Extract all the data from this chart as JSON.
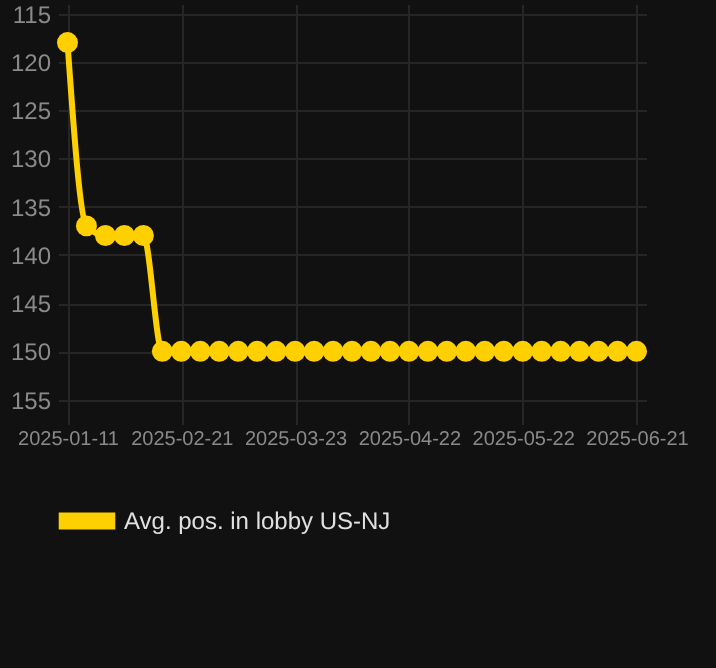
{
  "chart_data": {
    "type": "line",
    "categories": [
      "2025-01-11",
      null,
      null,
      null,
      null,
      null,
      "2025-02-21",
      null,
      null,
      null,
      null,
      null,
      "2025-03-23",
      null,
      null,
      null,
      null,
      null,
      "2025-04-22",
      null,
      null,
      null,
      null,
      null,
      "2025-05-22",
      null,
      null,
      null,
      null,
      null,
      "2025-06-21"
    ],
    "series": [
      {
        "name": "Avg. pos. in lobby US-NJ",
        "color": "#ffd000",
        "values": [
          118,
          137,
          138,
          138,
          138,
          150,
          150,
          150,
          150,
          150,
          150,
          150,
          150,
          150,
          150,
          150,
          150,
          150,
          150,
          150,
          150,
          150,
          150,
          150,
          150,
          150,
          150,
          150,
          150,
          150,
          150
        ]
      }
    ],
    "ylim": [
      156.5,
      114
    ],
    "yticks": [
      115,
      120,
      125,
      130,
      135,
      140,
      145,
      150,
      155
    ],
    "grid": true,
    "legend": "bottom",
    "marker": "circle",
    "line_style": "solid"
  }
}
